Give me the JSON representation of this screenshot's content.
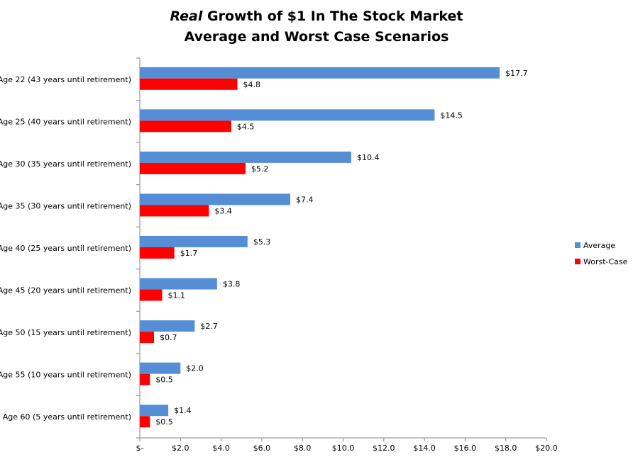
{
  "chart_data": {
    "type": "bar",
    "orientation": "horizontal",
    "title_italic": "Real",
    "title_rest": " Growth of $1 In The Stock Market",
    "subtitle": "Average and Worst Case Scenarios",
    "categories": [
      "Age 22 (43 years until retirement)",
      "Age 25 (40 years until retirement)",
      "Age 30 (35 years until retirement)",
      "Age 35 (30 years until retirement)",
      "Age 40 (25 years until retirement)",
      "Age 45 (20 years until retirement)",
      "Age 50 (15 years until retirement)",
      "Age 55 (10 years until retirement)",
      "Age 60 (5 years until retirement)"
    ],
    "series": [
      {
        "name": "Average",
        "color": "#558ed5",
        "values": [
          17.7,
          14.5,
          10.4,
          7.4,
          5.3,
          3.8,
          2.7,
          2.0,
          1.4
        ],
        "labels": [
          "$17.7",
          "$14.5",
          "$10.4",
          "$7.4",
          "$5.3",
          "$3.8",
          "$2.7",
          "$2.0",
          "$1.4"
        ]
      },
      {
        "name": "Worst-Case",
        "color": "#ff0000",
        "values": [
          4.8,
          4.5,
          5.2,
          3.4,
          1.7,
          1.1,
          0.7,
          0.5,
          0.5
        ],
        "labels": [
          "$4.8",
          "$4.5",
          "$5.2",
          "$3.4",
          "$1.7",
          "$1.1",
          "$0.7",
          "$0.5",
          "$0.5"
        ]
      }
    ],
    "xlim": [
      0,
      20
    ],
    "xticks": [
      0,
      2,
      4,
      6,
      8,
      10,
      12,
      14,
      16,
      18,
      20
    ],
    "xtick_labels": [
      "$-",
      "$2.0",
      "$4.0",
      "$6.0",
      "$8.0",
      "$10.0",
      "$12.0",
      "$14.0",
      "$16.0",
      "$18.0",
      "$20.0"
    ],
    "grid": false,
    "legend_position": "right"
  }
}
